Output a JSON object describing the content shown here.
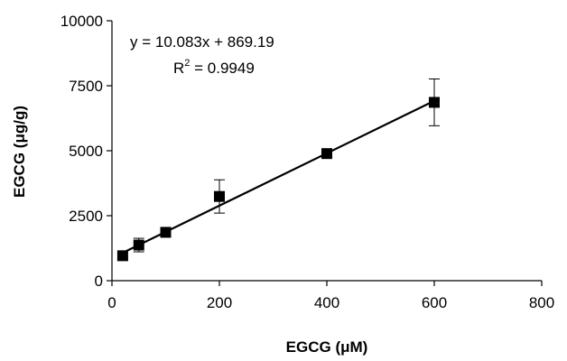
{
  "chart_data": {
    "type": "scatter",
    "xlabel": "EGCG (μM)",
    "ylabel": "EGCG (μg/g)",
    "xlim": [
      0,
      800
    ],
    "ylim": [
      0,
      10000
    ],
    "x_ticks": [
      0,
      200,
      400,
      600,
      800
    ],
    "y_ticks": [
      0,
      2500,
      5000,
      7500,
      10000
    ],
    "x_tick_labels": [
      "0",
      "200",
      "400",
      "600",
      "800"
    ],
    "y_tick_labels": [
      "0",
      "2500",
      "5000",
      "7500",
      "10000"
    ],
    "grid": false,
    "legend": "none",
    "marker": "square",
    "series": [
      {
        "x": [
          20,
          50,
          100,
          200,
          400,
          600
        ],
        "y": [
          960,
          1370,
          1860,
          3240,
          4890,
          6860
        ],
        "error": [
          120,
          260,
          150,
          640,
          130,
          900
        ]
      }
    ],
    "trendline": {
      "type": "linear",
      "slope": 10.083,
      "intercept": 869.19,
      "x_range": [
        20,
        600
      ]
    },
    "annotations": {
      "equation": "y = 10.083x + 869.19",
      "r2_prefix": "R",
      "r2_sup": "2",
      "r2_suffix": " = 0.9949"
    }
  }
}
